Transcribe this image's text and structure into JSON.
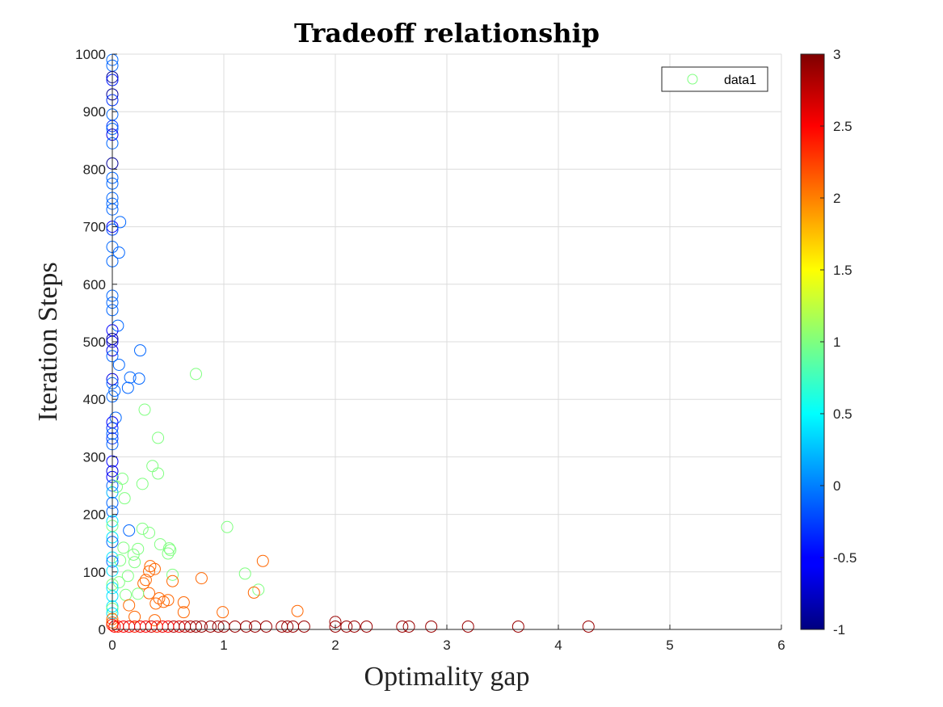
{
  "chart_data": {
    "type": "scatter",
    "title": "Tradeoff relationship",
    "xlabel": "Optimality gap",
    "ylabel": "Iteration Steps",
    "xlim": [
      0,
      6
    ],
    "ylim": [
      0,
      1000
    ],
    "xticks": [
      0,
      1,
      2,
      3,
      4,
      5,
      6
    ],
    "yticks": [
      0,
      100,
      200,
      300,
      400,
      500,
      600,
      700,
      800,
      900,
      1000
    ],
    "grid": true,
    "legend": {
      "position": "top-right",
      "entries": [
        "data1"
      ],
      "marker_color": "#7fff7f"
    },
    "colorbar": {
      "colormap": "jet",
      "range": [
        -1,
        3
      ],
      "ticks": [
        -1,
        -0.5,
        0,
        0.5,
        1,
        1.5,
        2,
        2.5,
        3
      ],
      "tick_labels": [
        "-1",
        "-0.5",
        "0",
        "0.5",
        "1",
        "1.5",
        "2",
        "2.5",
        "3"
      ]
    },
    "points": [
      {
        "x": 0.0,
        "y": 990,
        "c": -0.1
      },
      {
        "x": 0.0,
        "y": 980,
        "c": -0.1
      },
      {
        "x": 0.0,
        "y": 960,
        "c": -0.9
      },
      {
        "x": 0.0,
        "y": 955,
        "c": -0.4
      },
      {
        "x": 0.0,
        "y": 930,
        "c": -0.9
      },
      {
        "x": 0.0,
        "y": 920,
        "c": -0.3
      },
      {
        "x": 0.0,
        "y": 895,
        "c": -0.1
      },
      {
        "x": 0.0,
        "y": 875,
        "c": -0.3
      },
      {
        "x": 0.0,
        "y": 870,
        "c": -0.1
      },
      {
        "x": 0.0,
        "y": 860,
        "c": -0.6
      },
      {
        "x": 0.0,
        "y": 845,
        "c": -0.1
      },
      {
        "x": 0.0,
        "y": 810,
        "c": -0.9
      },
      {
        "x": 0.0,
        "y": 785,
        "c": -0.1
      },
      {
        "x": 0.0,
        "y": 775,
        "c": -0.1
      },
      {
        "x": 0.0,
        "y": 750,
        "c": -0.1
      },
      {
        "x": 0.0,
        "y": 740,
        "c": -0.1
      },
      {
        "x": 0.0,
        "y": 730,
        "c": -0.1
      },
      {
        "x": 0.0,
        "y": 700,
        "c": -0.5
      },
      {
        "x": 0.0,
        "y": 695,
        "c": -0.2
      },
      {
        "x": 0.07,
        "y": 708,
        "c": -0.1
      },
      {
        "x": 0.0,
        "y": 665,
        "c": -0.1
      },
      {
        "x": 0.06,
        "y": 655,
        "c": -0.1
      },
      {
        "x": 0.0,
        "y": 640,
        "c": -0.1
      },
      {
        "x": 0.0,
        "y": 580,
        "c": -0.1
      },
      {
        "x": 0.0,
        "y": 568,
        "c": -0.1
      },
      {
        "x": 0.0,
        "y": 555,
        "c": -0.1
      },
      {
        "x": 0.05,
        "y": 528,
        "c": -0.1
      },
      {
        "x": 0.0,
        "y": 520,
        "c": -0.5
      },
      {
        "x": 0.0,
        "y": 505,
        "c": -0.9
      },
      {
        "x": 0.0,
        "y": 500,
        "c": -0.6
      },
      {
        "x": 0.0,
        "y": 485,
        "c": -0.6
      },
      {
        "x": 0.0,
        "y": 475,
        "c": -0.1
      },
      {
        "x": 0.25,
        "y": 485,
        "c": -0.1
      },
      {
        "x": 0.06,
        "y": 460,
        "c": -0.1
      },
      {
        "x": 0.75,
        "y": 444,
        "c": 1.0
      },
      {
        "x": 0.16,
        "y": 438,
        "c": -0.1
      },
      {
        "x": 0.24,
        "y": 436,
        "c": -0.1
      },
      {
        "x": 0.0,
        "y": 435,
        "c": -0.6
      },
      {
        "x": 0.0,
        "y": 428,
        "c": -0.1
      },
      {
        "x": 0.14,
        "y": 420,
        "c": -0.1
      },
      {
        "x": 0.02,
        "y": 415,
        "c": -0.1
      },
      {
        "x": 0.0,
        "y": 405,
        "c": -0.1
      },
      {
        "x": 0.29,
        "y": 382,
        "c": 1.0
      },
      {
        "x": 0.03,
        "y": 368,
        "c": -0.1
      },
      {
        "x": 0.0,
        "y": 360,
        "c": -0.5
      },
      {
        "x": 0.0,
        "y": 350,
        "c": -0.3
      },
      {
        "x": 0.0,
        "y": 340,
        "c": -0.1
      },
      {
        "x": 0.0,
        "y": 332,
        "c": -0.3
      },
      {
        "x": 0.41,
        "y": 333,
        "c": 1.0
      },
      {
        "x": 0.0,
        "y": 322,
        "c": -0.1
      },
      {
        "x": 0.0,
        "y": 292,
        "c": -0.5
      },
      {
        "x": 0.36,
        "y": 284,
        "c": 1.0
      },
      {
        "x": 0.0,
        "y": 275,
        "c": -0.6
      },
      {
        "x": 0.41,
        "y": 271,
        "c": 1.0
      },
      {
        "x": 0.0,
        "y": 265,
        "c": -0.5
      },
      {
        "x": 0.09,
        "y": 262,
        "c": 1.0
      },
      {
        "x": 0.27,
        "y": 253,
        "c": 1.0
      },
      {
        "x": 0.0,
        "y": 250,
        "c": -0.1
      },
      {
        "x": 0.04,
        "y": 248,
        "c": 1.0
      },
      {
        "x": 0.0,
        "y": 238,
        "c": 0.2
      },
      {
        "x": 0.11,
        "y": 228,
        "c": 1.0
      },
      {
        "x": 0.0,
        "y": 220,
        "c": -0.1
      },
      {
        "x": 0.0,
        "y": 205,
        "c": -0.1
      },
      {
        "x": 0.0,
        "y": 188,
        "c": 0.4
      },
      {
        "x": 0.0,
        "y": 180,
        "c": 1.0
      },
      {
        "x": 1.03,
        "y": 178,
        "c": 1.0
      },
      {
        "x": 0.15,
        "y": 172,
        "c": -0.1
      },
      {
        "x": 0.27,
        "y": 175,
        "c": 1.0
      },
      {
        "x": 0.33,
        "y": 168,
        "c": 1.0
      },
      {
        "x": 0.0,
        "y": 160,
        "c": 0.4
      },
      {
        "x": 0.0,
        "y": 152,
        "c": -0.1
      },
      {
        "x": 0.43,
        "y": 148,
        "c": 1.0
      },
      {
        "x": 0.51,
        "y": 141,
        "c": 1.0
      },
      {
        "x": 0.52,
        "y": 138,
        "c": 1.0
      },
      {
        "x": 0.23,
        "y": 140,
        "c": 1.0
      },
      {
        "x": 0.1,
        "y": 142,
        "c": 1.0
      },
      {
        "x": 0.5,
        "y": 132,
        "c": 1.0
      },
      {
        "x": 0.19,
        "y": 130,
        "c": 1.0
      },
      {
        "x": 0.0,
        "y": 125,
        "c": 0.4
      },
      {
        "x": 0.07,
        "y": 120,
        "c": 1.0
      },
      {
        "x": 1.35,
        "y": 119,
        "c": 2.1
      },
      {
        "x": 0.0,
        "y": 118,
        "c": -0.1
      },
      {
        "x": 0.2,
        "y": 117,
        "c": 1.0
      },
      {
        "x": 0.34,
        "y": 110,
        "c": 2.1
      },
      {
        "x": 0.38,
        "y": 105,
        "c": 2.1
      },
      {
        "x": 0.33,
        "y": 101,
        "c": 2.1
      },
      {
        "x": 0.0,
        "y": 102,
        "c": 0.4
      },
      {
        "x": 1.19,
        "y": 97,
        "c": 1.0
      },
      {
        "x": 0.14,
        "y": 93,
        "c": 1.0
      },
      {
        "x": 0.54,
        "y": 95,
        "c": 1.0
      },
      {
        "x": 0.8,
        "y": 89,
        "c": 2.1
      },
      {
        "x": 0.3,
        "y": 86,
        "c": 2.1
      },
      {
        "x": 0.54,
        "y": 84,
        "c": 2.1
      },
      {
        "x": 0.28,
        "y": 80,
        "c": 2.1
      },
      {
        "x": 0.06,
        "y": 82,
        "c": 1.0
      },
      {
        "x": 0.0,
        "y": 78,
        "c": 1.0
      },
      {
        "x": 0.0,
        "y": 72,
        "c": 0.4
      },
      {
        "x": 1.31,
        "y": 69,
        "c": 1.0
      },
      {
        "x": 1.27,
        "y": 64,
        "c": 2.1
      },
      {
        "x": 0.33,
        "y": 63,
        "c": 2.1
      },
      {
        "x": 0.23,
        "y": 62,
        "c": 1.0
      },
      {
        "x": 0.12,
        "y": 60,
        "c": 1.0
      },
      {
        "x": 0.0,
        "y": 58,
        "c": 0.4
      },
      {
        "x": 0.42,
        "y": 54,
        "c": 2.1
      },
      {
        "x": 0.5,
        "y": 51,
        "c": 2.1
      },
      {
        "x": 0.46,
        "y": 48,
        "c": 2.1
      },
      {
        "x": 0.64,
        "y": 47,
        "c": 2.1
      },
      {
        "x": 0.39,
        "y": 45,
        "c": 2.1
      },
      {
        "x": 0.15,
        "y": 42,
        "c": 2.1
      },
      {
        "x": 0.0,
        "y": 40,
        "c": 0.4
      },
      {
        "x": 0.0,
        "y": 36,
        "c": 1.0
      },
      {
        "x": 1.66,
        "y": 32,
        "c": 2.1
      },
      {
        "x": 0.99,
        "y": 30,
        "c": 2.1
      },
      {
        "x": 0.64,
        "y": 30,
        "c": 2.1
      },
      {
        "x": 0.0,
        "y": 28,
        "c": 0.4
      },
      {
        "x": 0.2,
        "y": 22,
        "c": 2.1
      },
      {
        "x": 0.0,
        "y": 18,
        "c": 2.1
      },
      {
        "x": 0.38,
        "y": 16,
        "c": 2.1
      },
      {
        "x": 2.0,
        "y": 13,
        "c": 2.9
      },
      {
        "x": 0.0,
        "y": 12,
        "c": 2.1
      },
      {
        "x": 0.0,
        "y": 8,
        "c": 2.4
      },
      {
        "x": 0.02,
        "y": 5,
        "c": 2.5
      },
      {
        "x": 0.05,
        "y": 5,
        "c": 2.4
      },
      {
        "x": 0.1,
        "y": 5,
        "c": 2.5
      },
      {
        "x": 0.15,
        "y": 5,
        "c": 2.6
      },
      {
        "x": 0.2,
        "y": 5,
        "c": 2.4
      },
      {
        "x": 0.25,
        "y": 5,
        "c": 2.6
      },
      {
        "x": 0.3,
        "y": 5,
        "c": 2.5
      },
      {
        "x": 0.35,
        "y": 5,
        "c": 2.7
      },
      {
        "x": 0.4,
        "y": 5,
        "c": 2.4
      },
      {
        "x": 0.45,
        "y": 5,
        "c": 2.6
      },
      {
        "x": 0.5,
        "y": 5,
        "c": 2.5
      },
      {
        "x": 0.55,
        "y": 5,
        "c": 2.8
      },
      {
        "x": 0.6,
        "y": 5,
        "c": 2.6
      },
      {
        "x": 0.65,
        "y": 5,
        "c": 2.8
      },
      {
        "x": 0.7,
        "y": 5,
        "c": 2.8
      },
      {
        "x": 0.75,
        "y": 5,
        "c": 2.9
      },
      {
        "x": 0.8,
        "y": 5,
        "c": 2.9
      },
      {
        "x": 0.88,
        "y": 5,
        "c": 2.9
      },
      {
        "x": 0.95,
        "y": 5,
        "c": 2.9
      },
      {
        "x": 1.0,
        "y": 5,
        "c": 2.9
      },
      {
        "x": 1.1,
        "y": 5,
        "c": 2.9
      },
      {
        "x": 1.2,
        "y": 5,
        "c": 2.9
      },
      {
        "x": 1.28,
        "y": 5,
        "c": 2.9
      },
      {
        "x": 1.38,
        "y": 5,
        "c": 2.9
      },
      {
        "x": 1.52,
        "y": 5,
        "c": 2.9
      },
      {
        "x": 1.57,
        "y": 5,
        "c": 2.9
      },
      {
        "x": 1.62,
        "y": 5,
        "c": 2.9
      },
      {
        "x": 1.72,
        "y": 5,
        "c": 2.9
      },
      {
        "x": 2.0,
        "y": 5,
        "c": 2.9
      },
      {
        "x": 2.1,
        "y": 5,
        "c": 2.9
      },
      {
        "x": 2.17,
        "y": 5,
        "c": 2.9
      },
      {
        "x": 2.28,
        "y": 5,
        "c": 2.9
      },
      {
        "x": 2.6,
        "y": 5,
        "c": 2.9
      },
      {
        "x": 2.66,
        "y": 5,
        "c": 2.9
      },
      {
        "x": 2.86,
        "y": 5,
        "c": 2.9
      },
      {
        "x": 3.19,
        "y": 5,
        "c": 2.9
      },
      {
        "x": 3.64,
        "y": 5,
        "c": 2.9
      },
      {
        "x": 4.27,
        "y": 5,
        "c": 2.9
      }
    ]
  }
}
